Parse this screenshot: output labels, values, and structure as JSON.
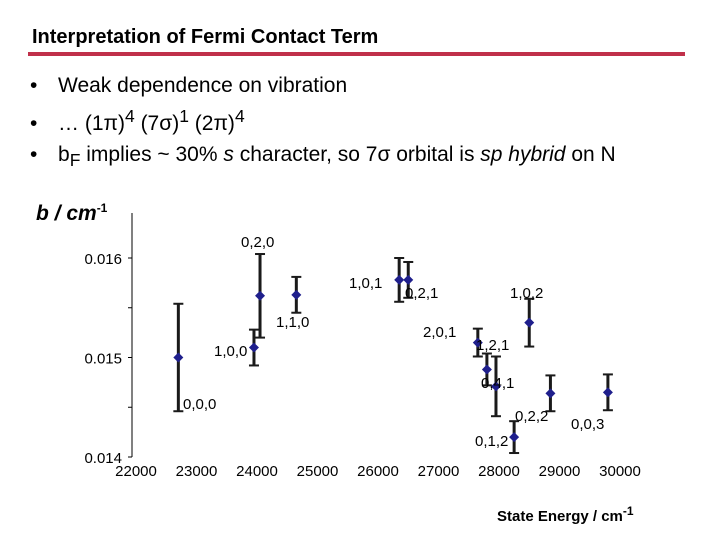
{
  "title": "Interpretation of Fermi Contact Term",
  "bullets": [
    {
      "pre": "Weak dependence on vibration",
      "b": "",
      "sub": "",
      "mid": "",
      "s": "",
      "mid2": "",
      "sp": "",
      "post": ""
    },
    {
      "pre": "… (1π)",
      "sup1": "4",
      "t1": " (7σ)",
      "sup2": "1",
      "t2": " (2π)",
      "sup3": "4"
    },
    {
      "pre": "b",
      "sub": "F",
      "mid": " implies ~ 30% ",
      "s": "s",
      "mid2": " character, so 7σ orbital is ",
      "sp": "sp hybrid",
      "post": " on N"
    }
  ],
  "colors": {
    "accent": "#c0304a",
    "marker": "#1f1f8c"
  },
  "chart_data": {
    "type": "scatter",
    "ylabel": "b / cm",
    "ylabel_sup": "-1",
    "xlabel": "State Energy / cm",
    "xlabel_sup": "-1",
    "xlim": [
      22000,
      30000
    ],
    "ylim": [
      0.014,
      0.0166
    ],
    "x_ticks": [
      "22000",
      "23000",
      "24000",
      "25000",
      "26000",
      "27000",
      "28000",
      "29000",
      "30000"
    ],
    "y_ticks": [
      "0.014",
      "0.015",
      "0.016"
    ],
    "y_tick_values": [
      0.014,
      0.015,
      0.016
    ],
    "y_minor_ticks": [
      0.0145,
      0.0155
    ],
    "points": [
      {
        "label": "0,0,0",
        "x": 22700,
        "y": 0.015,
        "err": 0.00054
      },
      {
        "label": "1,0,0",
        "x": 23950,
        "y": 0.0151,
        "err": 0.00018
      },
      {
        "label": "0,2,0",
        "x": 24050,
        "y": 0.01562,
        "err": 0.00042
      },
      {
        "label": "1,1,0",
        "x": 24650,
        "y": 0.01563,
        "err": 0.00018
      },
      {
        "label": "1,0,1",
        "x": 26350,
        "y": 0.01578,
        "err": 0.00022
      },
      {
        "label": "0,2,1",
        "x": 26500,
        "y": 0.01578,
        "err": 0.00018
      },
      {
        "label": "1,0,2",
        "x": 28500,
        "y": 0.01535,
        "err": 0.00024
      },
      {
        "label": "2,0,1",
        "x": 27650,
        "y": 0.01515,
        "err": 0.00014
      },
      {
        "label": "1,2,1",
        "x": 27800,
        "y": 0.01488,
        "err": 0.00016
      },
      {
        "label": "0,4,1",
        "x": 27950,
        "y": 0.01471,
        "err": 0.0003
      },
      {
        "label": "0,2,2",
        "x": 28850,
        "y": 0.01464,
        "err": 0.00018
      },
      {
        "label": "0,0,3",
        "x": 29800,
        "y": 0.01465,
        "err": 0.00018
      },
      {
        "label": "0,1,2",
        "x": 28250,
        "y": 0.0142,
        "err": 0.00016
      }
    ],
    "grid": false,
    "legend": "none"
  }
}
